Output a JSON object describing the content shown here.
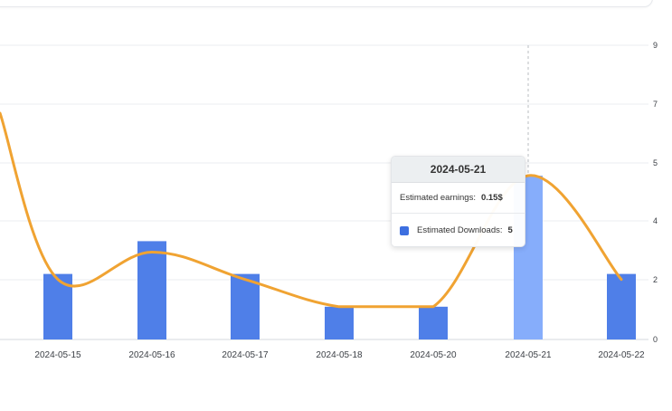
{
  "chart_data": {
    "type": "bar",
    "categories": [
      "2024-05-15",
      "2024-05-16",
      "2024-05-17",
      "2024-05-18",
      "2024-05-20",
      "2024-05-21",
      "2024-05-22"
    ],
    "series": [
      {
        "name": "Estimated Downloads",
        "type": "bar",
        "values": [
          2,
          3,
          2,
          1,
          1,
          5,
          2
        ],
        "color": "#4f7fe8"
      },
      {
        "name": "Estimated earnings",
        "type": "line",
        "values": [
          0.055,
          0.08,
          0.055,
          0.03,
          0.03,
          0.15,
          0.055
        ],
        "color": "#f0a332"
      }
    ],
    "y_ticks": [
      "0",
      "2",
      "4",
      "5",
      "7",
      "9"
    ],
    "highlight_bar_color": "#86adfb",
    "grid": true
  },
  "tooltip": {
    "title": "2024-05-21",
    "earnings_label": "Estimated earnings:",
    "earnings_value": "0.15$",
    "downloads_label": "Estimated Downloads:",
    "downloads_value": "5"
  }
}
